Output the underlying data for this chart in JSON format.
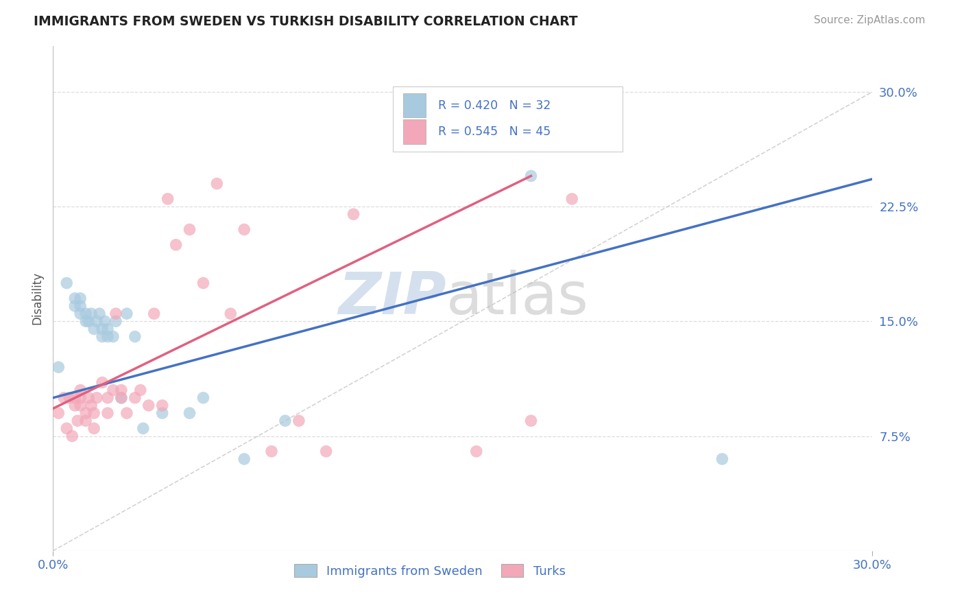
{
  "title": "IMMIGRANTS FROM SWEDEN VS TURKISH DISABILITY CORRELATION CHART",
  "source": "Source: ZipAtlas.com",
  "ylabel": "Disability",
  "ytick_labels": [
    "7.5%",
    "15.0%",
    "22.5%",
    "30.0%"
  ],
  "ytick_values": [
    0.075,
    0.15,
    0.225,
    0.3
  ],
  "xlim": [
    0.0,
    0.3
  ],
  "ylim": [
    0.0,
    0.33
  ],
  "legend_r1": "R = 0.420",
  "legend_n1": "N = 32",
  "legend_r2": "R = 0.545",
  "legend_n2": "N = 45",
  "color_sweden": "#A8CADF",
  "color_turks": "#F2A8B8",
  "line_color_sweden": "#4472C4",
  "line_color_turks": "#E06080",
  "line_color_diag": "#C8C8C8",
  "background_color": "#FFFFFF",
  "grid_color": "#DDDDDD",
  "title_color": "#222222",
  "axis_label_color": "#4472C4",
  "watermark_zip": "ZIP",
  "watermark_atlas": "atlas",
  "sweden_points_x": [
    0.002,
    0.005,
    0.008,
    0.008,
    0.01,
    0.01,
    0.01,
    0.012,
    0.012,
    0.013,
    0.014,
    0.015,
    0.016,
    0.017,
    0.018,
    0.018,
    0.019,
    0.02,
    0.02,
    0.022,
    0.023,
    0.025,
    0.027,
    0.03,
    0.033,
    0.04,
    0.05,
    0.055,
    0.07,
    0.085,
    0.175,
    0.245
  ],
  "sweden_points_y": [
    0.12,
    0.175,
    0.16,
    0.165,
    0.155,
    0.16,
    0.165,
    0.15,
    0.155,
    0.15,
    0.155,
    0.145,
    0.15,
    0.155,
    0.14,
    0.145,
    0.15,
    0.14,
    0.145,
    0.14,
    0.15,
    0.1,
    0.155,
    0.14,
    0.08,
    0.09,
    0.09,
    0.1,
    0.06,
    0.085,
    0.245,
    0.06
  ],
  "turks_points_x": [
    0.002,
    0.004,
    0.005,
    0.006,
    0.007,
    0.008,
    0.008,
    0.009,
    0.01,
    0.01,
    0.01,
    0.012,
    0.012,
    0.013,
    0.014,
    0.015,
    0.015,
    0.016,
    0.018,
    0.02,
    0.02,
    0.022,
    0.023,
    0.025,
    0.025,
    0.027,
    0.03,
    0.032,
    0.035,
    0.037,
    0.04,
    0.042,
    0.045,
    0.05,
    0.055,
    0.06,
    0.065,
    0.07,
    0.08,
    0.09,
    0.1,
    0.11,
    0.155,
    0.175,
    0.19
  ],
  "turks_points_y": [
    0.09,
    0.1,
    0.08,
    0.1,
    0.075,
    0.095,
    0.1,
    0.085,
    0.095,
    0.1,
    0.105,
    0.085,
    0.09,
    0.1,
    0.095,
    0.08,
    0.09,
    0.1,
    0.11,
    0.09,
    0.1,
    0.105,
    0.155,
    0.1,
    0.105,
    0.09,
    0.1,
    0.105,
    0.095,
    0.155,
    0.095,
    0.23,
    0.2,
    0.21,
    0.175,
    0.24,
    0.155,
    0.21,
    0.065,
    0.085,
    0.065,
    0.22,
    0.065,
    0.085,
    0.23
  ],
  "sweden_line_x0": 0.0,
  "sweden_line_x1": 0.3,
  "sweden_line_y0": 0.1,
  "sweden_line_y1": 0.243,
  "turks_line_x0": 0.0,
  "turks_line_x1": 0.175,
  "turks_line_y0": 0.093,
  "turks_line_y1": 0.245
}
